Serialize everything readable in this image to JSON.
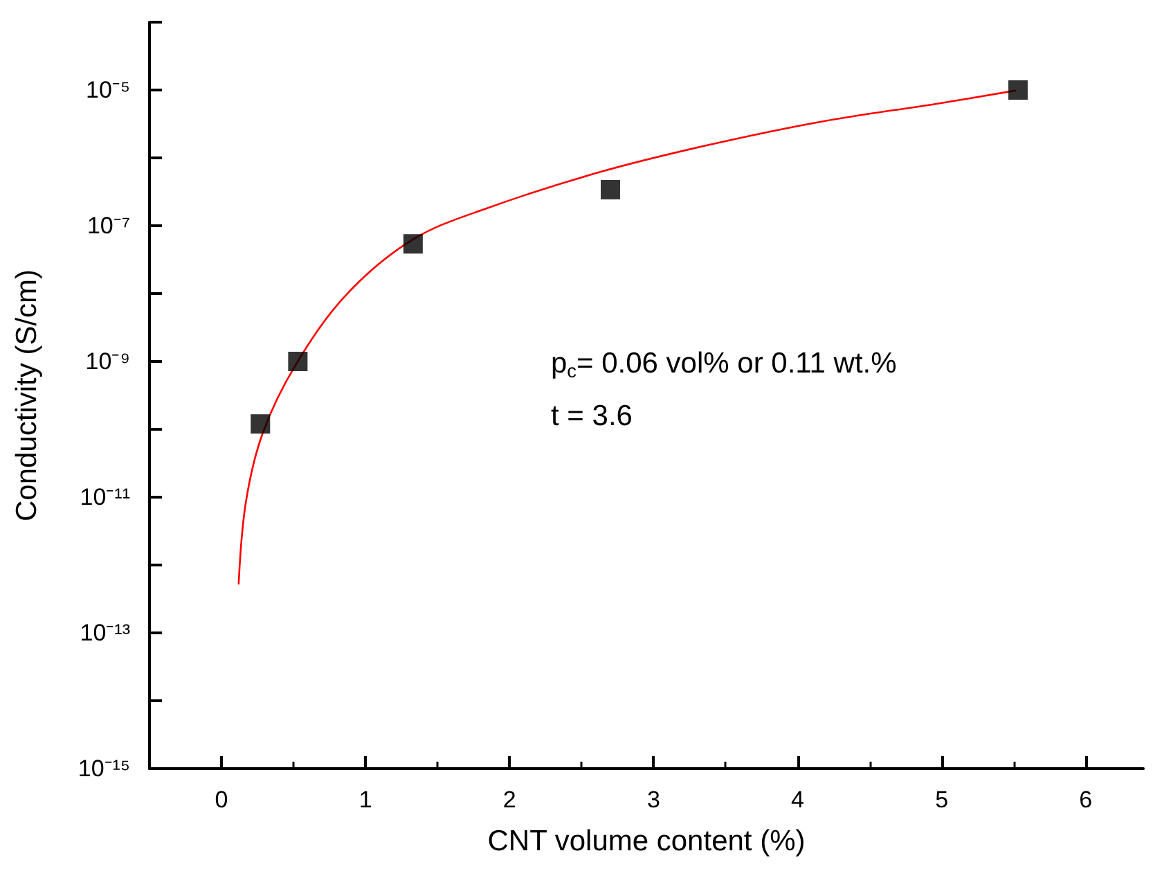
{
  "chart_data": {
    "type": "scatter",
    "xlabel": "CNT volume content (%)",
    "ylabel": "Conductivity (S/cm)",
    "annotations": [
      "p$_{c}$= 0.06 vol% or 0.11 wt.%",
      "t = 3.6"
    ],
    "log": "y",
    "xlim": [
      -0.5,
      6.4
    ],
    "xticks": [
      0,
      1,
      2,
      3,
      4,
      5,
      6
    ],
    "ylim": [
      1e-15,
      0.0001
    ],
    "yticks": [
      {
        "value": 1e-15,
        "label": "10⁻¹⁵"
      },
      {
        "value": 1e-14,
        "label": null
      },
      {
        "value": 1e-13,
        "label": "10⁻¹³"
      },
      {
        "value": 1e-12,
        "label": null
      },
      {
        "value": 1e-11,
        "label": "10⁻¹¹"
      },
      {
        "value": 1e-10,
        "label": null
      },
      {
        "value": 1e-09,
        "label": "10⁻⁹"
      },
      {
        "value": 1e-08,
        "label": null
      },
      {
        "value": 1e-07,
        "label": "10⁻⁷"
      },
      {
        "value": 1e-06,
        "label": null
      },
      {
        "value": 1e-05,
        "label": "10⁻⁵"
      },
      {
        "value": 0.0001,
        "label": null
      }
    ],
    "series": [
      {
        "type": "scatter",
        "color": "#000000",
        "marker": "square",
        "x": [
          0.27,
          0.53,
          1.33,
          2.7,
          5.53
        ],
        "values": [
          1.2e-10,
          1e-09,
          5.4e-08,
          3.4e-07,
          1e-05
        ]
      },
      {
        "type": "line",
        "color": "#ff0000",
        "marker": "none",
        "line_style": "solid",
        "x": [
          0.119,
          0.169,
          0.287,
          0.52,
          0.87,
          1.33,
          1.84,
          2.63,
          3.41,
          4.19,
          4.97,
          5.51
        ],
        "values": [
          5.3e-13,
          8.4e-12,
          8.9e-11,
          9.3e-10,
          9.8e-09,
          6.3e-08,
          1.8e-07,
          6.2e-07,
          1.6e-06,
          3.5e-06,
          6.3e-06,
          9.8e-06
        ]
      }
    ]
  }
}
